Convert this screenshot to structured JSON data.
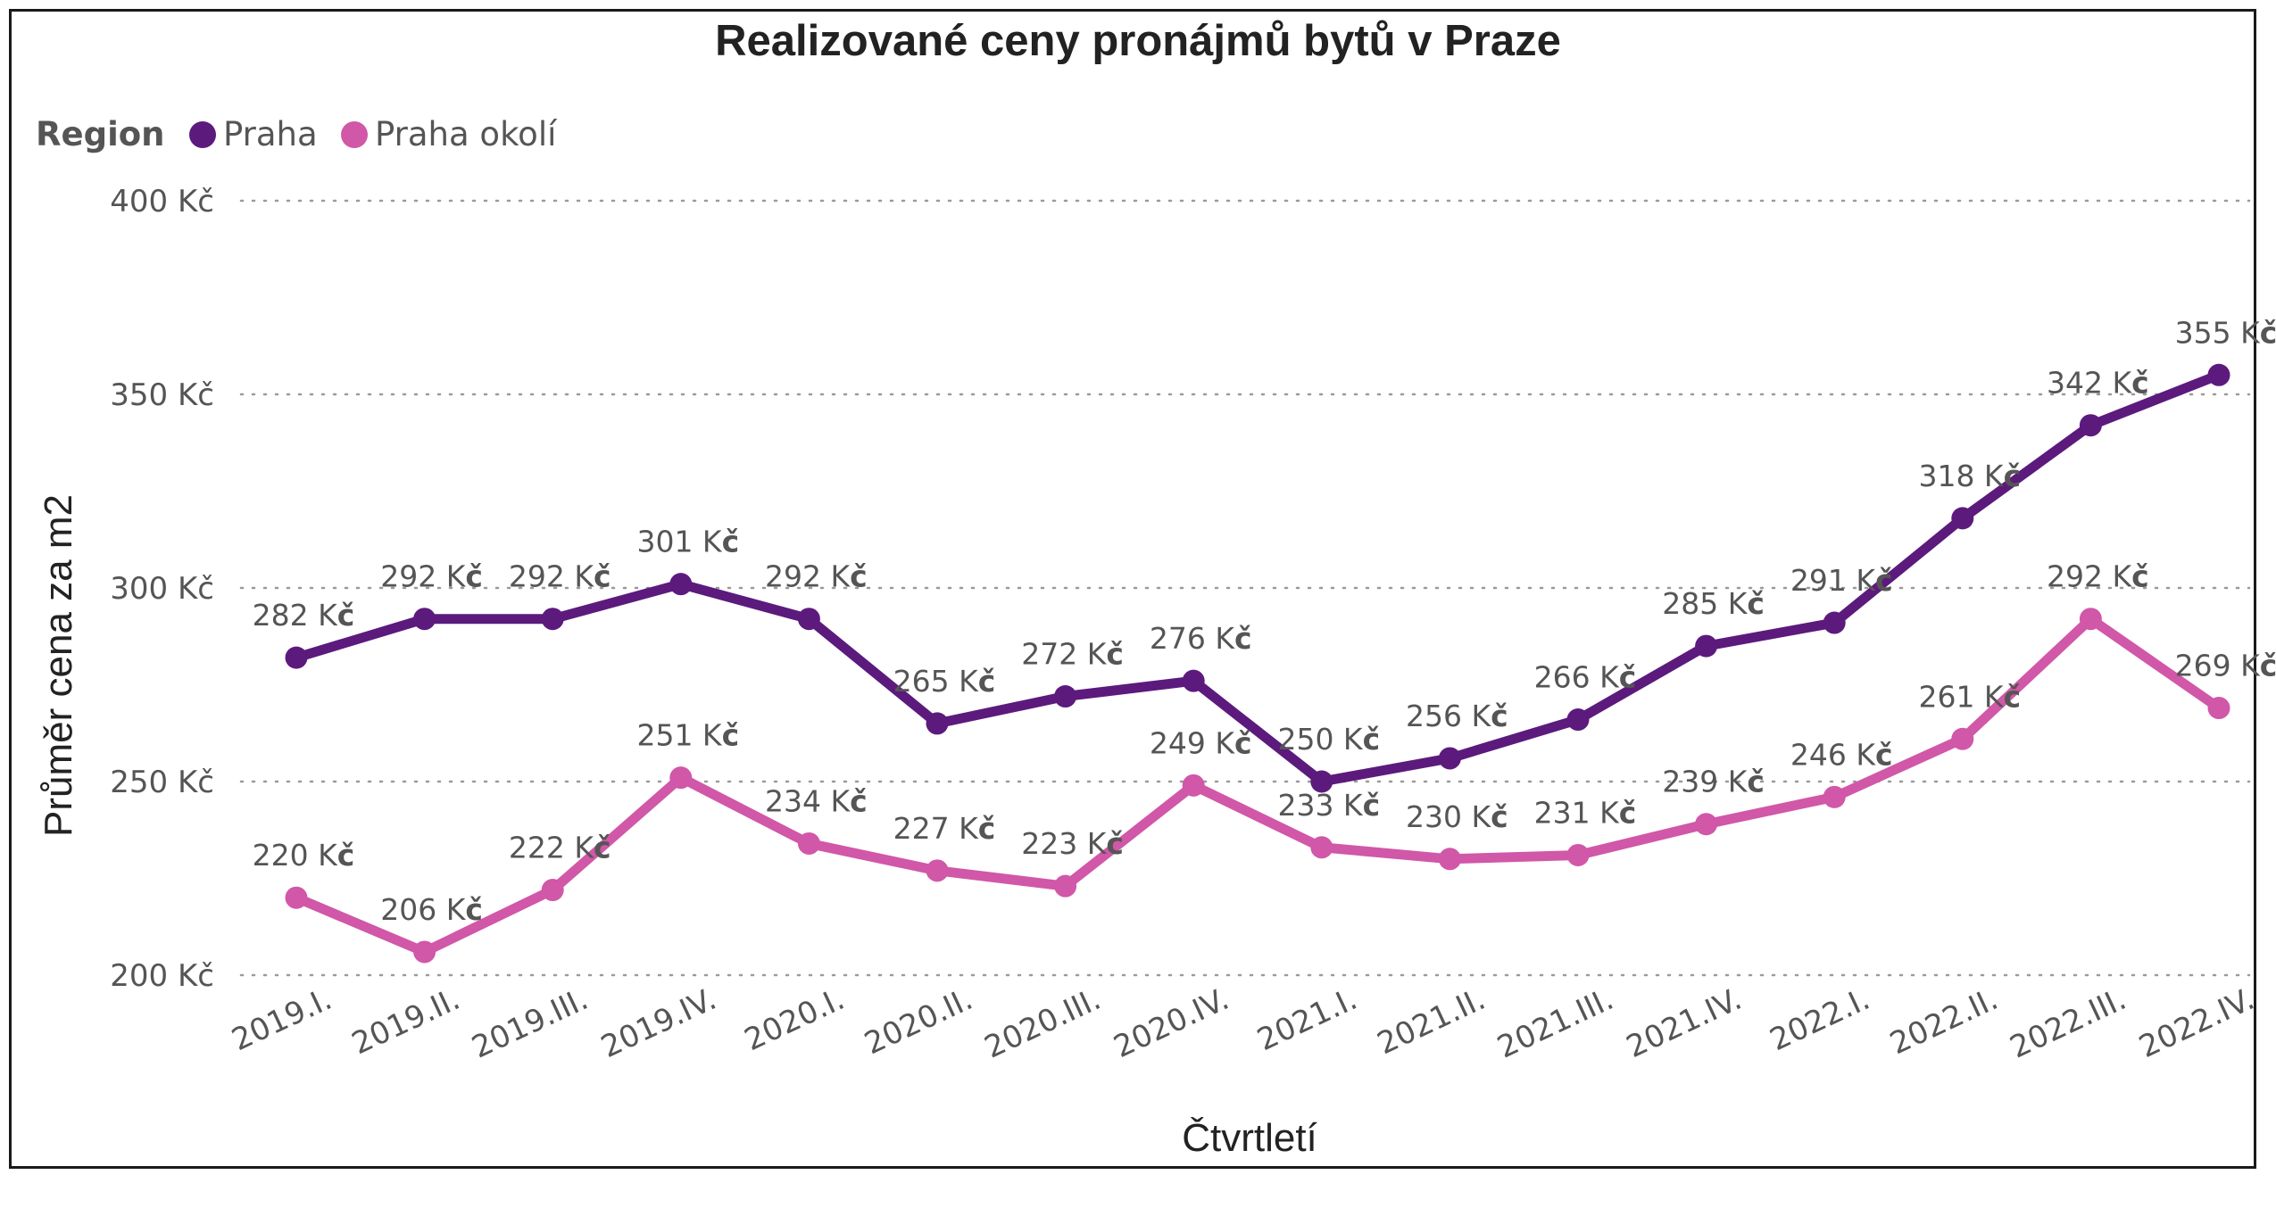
{
  "chart_data": {
    "type": "line",
    "title": "Realizované ceny pronájmů bytů v Praze",
    "xlabel": "Čtvrtletí",
    "ylabel": "Průměr cena za m2",
    "ylim": [
      200,
      400
    ],
    "yticks": [
      200,
      250,
      300,
      350,
      400
    ],
    "ytick_labels": [
      "200 Kč",
      "250 Kč",
      "300 Kč",
      "350 Kč",
      "400 Kč"
    ],
    "grid": "horizontal-dotted",
    "legend": {
      "title": "Region",
      "placement": "top-left"
    },
    "categories": [
      "2019.I.",
      "2019.II.",
      "2019.III.",
      "2019.IV.",
      "2020.I.",
      "2020.II.",
      "2020.III.",
      "2020.IV.",
      "2021.I.",
      "2021.II.",
      "2021.III.",
      "2021.IV.",
      "2022.I.",
      "2022.II.",
      "2022.III.",
      "2022.IV."
    ],
    "series": [
      {
        "name": "Praha",
        "color": "#5c1a7d",
        "values": [
          282,
          292,
          292,
          301,
          292,
          265,
          272,
          276,
          250,
          256,
          266,
          285,
          291,
          318,
          342,
          355
        ],
        "labels": [
          "282 Kč",
          "292 Kč",
          "292 Kč",
          "301 Kč",
          "292 Kč",
          "265 Kč",
          "272 Kč",
          "276 Kč",
          "250 Kč",
          "256 Kč",
          "266 Kč",
          "285 Kč",
          "291 Kč",
          "318 Kč",
          "342 Kč",
          "355 Kč"
        ]
      },
      {
        "name": "Praha okolí",
        "color": "#d157a8",
        "values": [
          220,
          206,
          222,
          251,
          234,
          227,
          223,
          249,
          233,
          230,
          231,
          239,
          246,
          261,
          292,
          269
        ],
        "labels": [
          "220 Kč",
          "206 Kč",
          "222 Kč",
          "251 Kč",
          "234 Kč",
          "227 Kč",
          "223 Kč",
          "249 Kč",
          "233 Kč",
          "230 Kč",
          "231 Kč",
          "239 Kč",
          "246 Kč",
          "261 Kč",
          "292 Kč",
          "269 Kč"
        ]
      }
    ]
  }
}
